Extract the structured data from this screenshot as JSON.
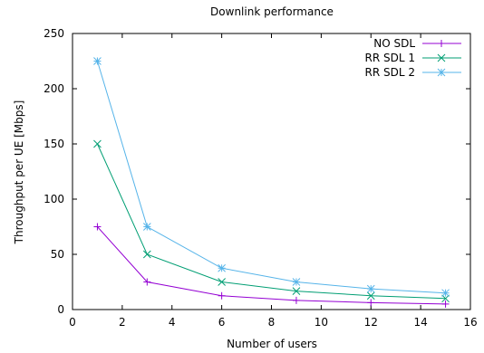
{
  "chart_data": {
    "type": "line",
    "title": "Downlink performance",
    "xlabel": "Number of users",
    "ylabel": "Throughput per UE [Mbps]",
    "xlim": [
      0,
      16
    ],
    "ylim": [
      0,
      250
    ],
    "xticks": [
      0,
      2,
      4,
      6,
      8,
      10,
      12,
      14,
      16
    ],
    "yticks": [
      0,
      50,
      100,
      150,
      200,
      250
    ],
    "grid": false,
    "legend_position": "top-right",
    "x": [
      1,
      3,
      6,
      9,
      12,
      15
    ],
    "series": [
      {
        "name": "NO SDL",
        "values": [
          75,
          25,
          12.5,
          8.3,
          6.25,
          5
        ],
        "color": "#9400d3",
        "marker": "plus"
      },
      {
        "name": "RR SDL 1",
        "values": [
          150,
          50,
          25,
          16.7,
          12.5,
          10
        ],
        "color": "#009e73",
        "marker": "cross"
      },
      {
        "name": "RR SDL 2",
        "values": [
          225,
          75,
          37.5,
          25,
          18.75,
          15
        ],
        "color": "#56b4e9",
        "marker": "star"
      }
    ]
  }
}
